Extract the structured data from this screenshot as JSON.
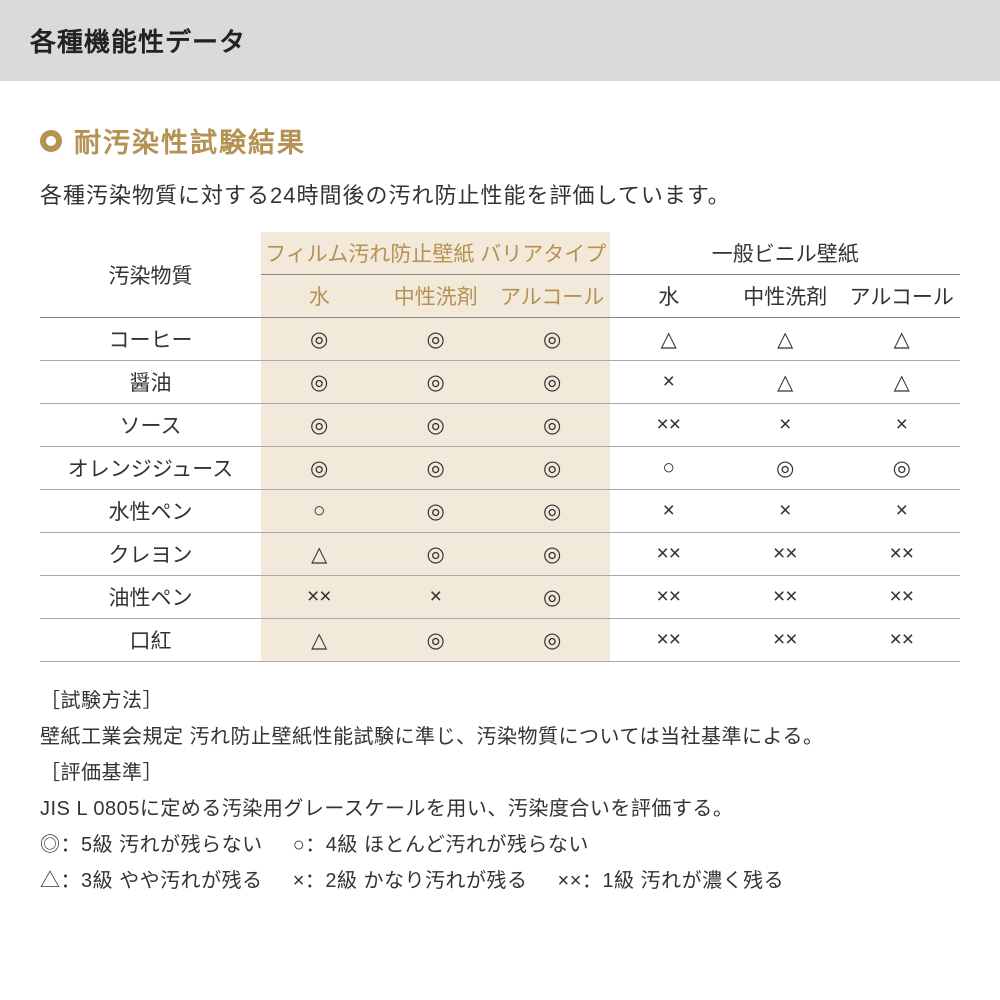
{
  "colors": {
    "accent": "#b49253",
    "tint": "#f3e9db",
    "headerBg": "#dadada"
  },
  "header": {
    "title": "各種機能性データ"
  },
  "section": {
    "title": "耐汚染性試験結果",
    "subtitle": "各種汚染物質に対する24時間後の汚れ防止性能を評価しています。"
  },
  "table": {
    "rowHeader": "汚染物質",
    "groupA": {
      "label": "フィルム汚れ防止壁紙 バリアタイプ",
      "highlight": true
    },
    "groupB": {
      "label": "一般ビニル壁紙",
      "highlight": false
    },
    "subColumns": [
      "水",
      "中性洗剤",
      "アルコール"
    ],
    "rows": [
      {
        "label": "コーヒー",
        "a": [
          "◎",
          "◎",
          "◎"
        ],
        "b": [
          "△",
          "△",
          "△"
        ]
      },
      {
        "label": "醤油",
        "a": [
          "◎",
          "◎",
          "◎"
        ],
        "b": [
          "×",
          "△",
          "△"
        ]
      },
      {
        "label": "ソース",
        "a": [
          "◎",
          "◎",
          "◎"
        ],
        "b": [
          "××",
          "×",
          "×"
        ]
      },
      {
        "label": "オレンジジュース",
        "a": [
          "◎",
          "◎",
          "◎"
        ],
        "b": [
          "○",
          "◎",
          "◎"
        ]
      },
      {
        "label": "水性ペン",
        "a": [
          "○",
          "◎",
          "◎"
        ],
        "b": [
          "×",
          "×",
          "×"
        ]
      },
      {
        "label": "クレヨン",
        "a": [
          "△",
          "◎",
          "◎"
        ],
        "b": [
          "××",
          "××",
          "××"
        ]
      },
      {
        "label": "油性ペン",
        "a": [
          "××",
          "×",
          "◎"
        ],
        "b": [
          "××",
          "××",
          "××"
        ]
      },
      {
        "label": "口紅",
        "a": [
          "△",
          "◎",
          "◎"
        ],
        "b": [
          "××",
          "××",
          "××"
        ]
      }
    ]
  },
  "notes": {
    "method": {
      "label": "［試験方法］",
      "text": "壁紙工業会規定 汚れ防止壁紙性能試験に準じ、汚染物質については当社基準による。"
    },
    "criteria": {
      "label": "［評価基準］",
      "text": "JIS L 0805に定める汚染用グレースケールを用い、汚染度合いを評価する。"
    },
    "legend": [
      "◎：5級 汚れが残らない",
      "○：4級 ほとんど汚れが残らない",
      "△：3級 やや汚れが残る",
      "×：2級 かなり汚れが残る",
      "××：1級 汚れが濃く残る"
    ]
  }
}
